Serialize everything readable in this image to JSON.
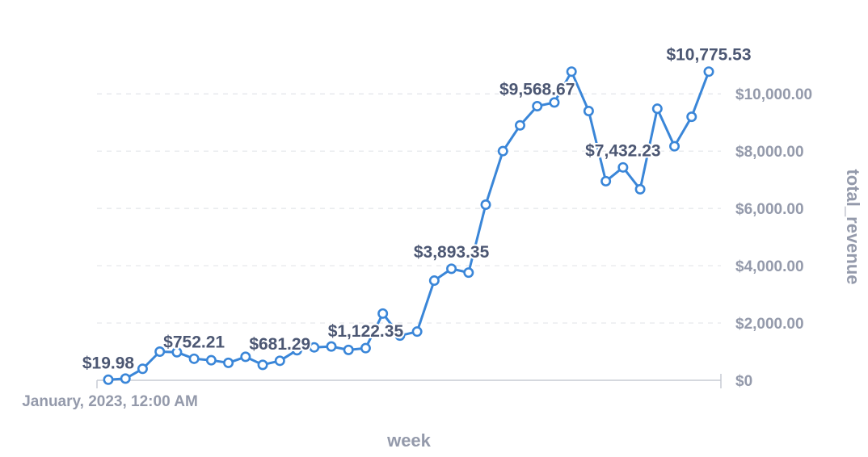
{
  "chart_data": {
    "type": "line",
    "xlabel": "week",
    "ylabel": "total_revenue",
    "x_first_tick_label": "January, 2023, 12:00 AM",
    "y_axis_side": "right",
    "ylim": [
      0,
      11500
    ],
    "y_ticks": [
      {
        "value": 0,
        "label": "$0"
      },
      {
        "value": 2000,
        "label": "$2,000.00"
      },
      {
        "value": 4000,
        "label": "$4,000.00"
      },
      {
        "value": 6000,
        "label": "$6,000.00"
      },
      {
        "value": 8000,
        "label": "$8,000.00"
      },
      {
        "value": 10000,
        "label": "$10,000.00"
      }
    ],
    "grid": true,
    "color": "#3a86d8",
    "series": [
      {
        "values": [
          19.98,
          60,
          400,
          1000,
          980,
          752.21,
          700,
          610,
          820,
          540,
          681.29,
          1050,
          1150,
          1180,
          1060,
          1122.35,
          2330,
          1560,
          1700,
          3480,
          3893.35,
          3760,
          6130,
          8000,
          8900,
          9568.67,
          9700,
          10775.53,
          9400,
          6950,
          7432.23,
          6670,
          9480,
          8170,
          9200,
          10775.53
        ]
      }
    ],
    "data_labels": [
      {
        "index": 0,
        "text": "$19.98"
      },
      {
        "index": 5,
        "text": "$752.21"
      },
      {
        "index": 10,
        "text": "$681.29"
      },
      {
        "index": 15,
        "text": "$1,122.35"
      },
      {
        "index": 20,
        "text": "$3,893.35"
      },
      {
        "index": 25,
        "text": "$9,568.67"
      },
      {
        "index": 30,
        "text": "$7,432.23"
      },
      {
        "index": 35,
        "text": "$10,775.53"
      }
    ]
  }
}
